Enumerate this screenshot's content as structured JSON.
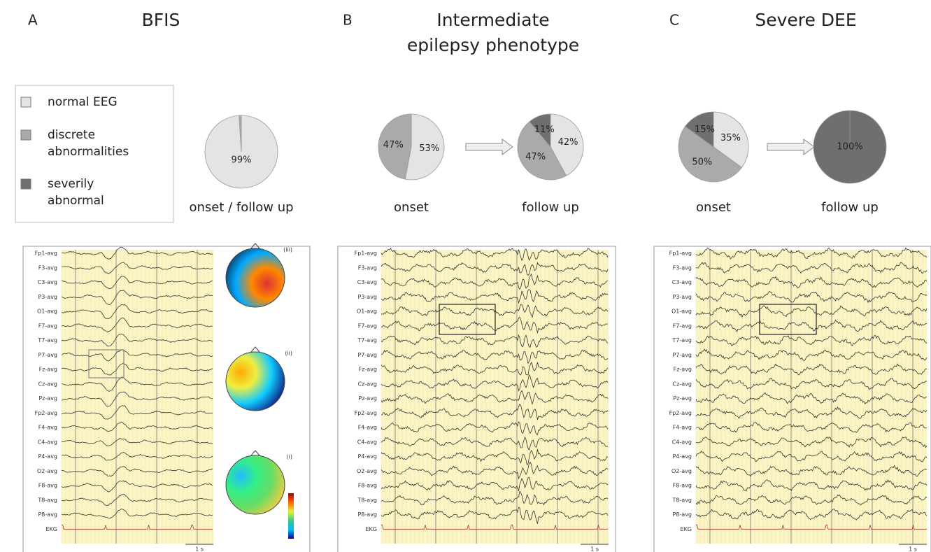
{
  "legend": {
    "items": [
      {
        "label": "normal  EEG",
        "color": "#e4e4e4"
      },
      {
        "label": "discrete\nabnormalities",
        "color": "#aaaaaa"
      },
      {
        "label": "severily\nabnormal",
        "color": "#6f6f6f"
      }
    ]
  },
  "panels": [
    {
      "letter": "A",
      "title": [
        "BFIS"
      ],
      "pies": [
        {
          "type": "pie",
          "label": "onset / follow up",
          "values": [
            99,
            1,
            0
          ],
          "value_labels": [
            "99%",
            null,
            null
          ]
        }
      ],
      "eeg": {
        "channels": [
          "Fp1-avg",
          "F3-avg",
          "C3-avg",
          "P3-avg",
          "O1-avg",
          "F7-avg",
          "T7-avg",
          "P7-avg",
          "Fz-avg",
          "Cz-avg",
          "Pz-avg",
          "Fp2-avg",
          "F4-avg",
          "C4-avg",
          "P4-avg",
          "O2-avg",
          "F8-avg",
          "T8-avg",
          "P8-avg",
          "EKG"
        ],
        "maps": [
          "(iii)",
          "(ii)",
          "(i)"
        ],
        "scale": "1 s"
      }
    },
    {
      "letter": "B",
      "title": [
        "Intermediate",
        "epilepsy  phenotype"
      ],
      "pies": [
        {
          "type": "pie",
          "label": "onset",
          "values": [
            53,
            47,
            0
          ],
          "value_labels": [
            "53%",
            "47%",
            null
          ]
        },
        {
          "type": "pie",
          "label": "follow up",
          "values": [
            42,
            47,
            11
          ],
          "value_labels": [
            "42%",
            "47%",
            "11%"
          ]
        }
      ],
      "eeg": {
        "channels": [
          "Fp1-avg",
          "F3-avg",
          "C3-avg",
          "P3-avg",
          "O1-avg",
          "F7-avg",
          "T7-avg",
          "P7-avg",
          "Fz-avg",
          "Cz-avg",
          "Pz-avg",
          "Fp2-avg",
          "F4-avg",
          "C4-avg",
          "P4-avg",
          "O2-avg",
          "F8-avg",
          "T8-avg",
          "P8-avg",
          "EKG"
        ],
        "scale": "1 s"
      }
    },
    {
      "letter": "C",
      "title": [
        "Severe DEE"
      ],
      "pies": [
        {
          "type": "pie",
          "label": "onset",
          "values": [
            35,
            50,
            15
          ],
          "value_labels": [
            "35%",
            "50%",
            "15%"
          ]
        },
        {
          "type": "pie",
          "label": "follow up",
          "values": [
            0,
            0,
            100
          ],
          "value_labels": [
            null,
            null,
            "100%"
          ]
        }
      ],
      "eeg": {
        "channels": [
          "Fp1-avg",
          "F3-avg",
          "C3-avg",
          "P3-avg",
          "O1-avg",
          "F7-avg",
          "T7-avg",
          "P7-avg",
          "Fz-avg",
          "Cz-avg",
          "Pz-avg",
          "Fp2-avg",
          "F4-avg",
          "C4-avg",
          "P4-avg",
          "O2-avg",
          "F8-avg",
          "T8-avg",
          "P8-avg",
          "EKG"
        ],
        "scale": "1 s"
      }
    }
  ]
}
